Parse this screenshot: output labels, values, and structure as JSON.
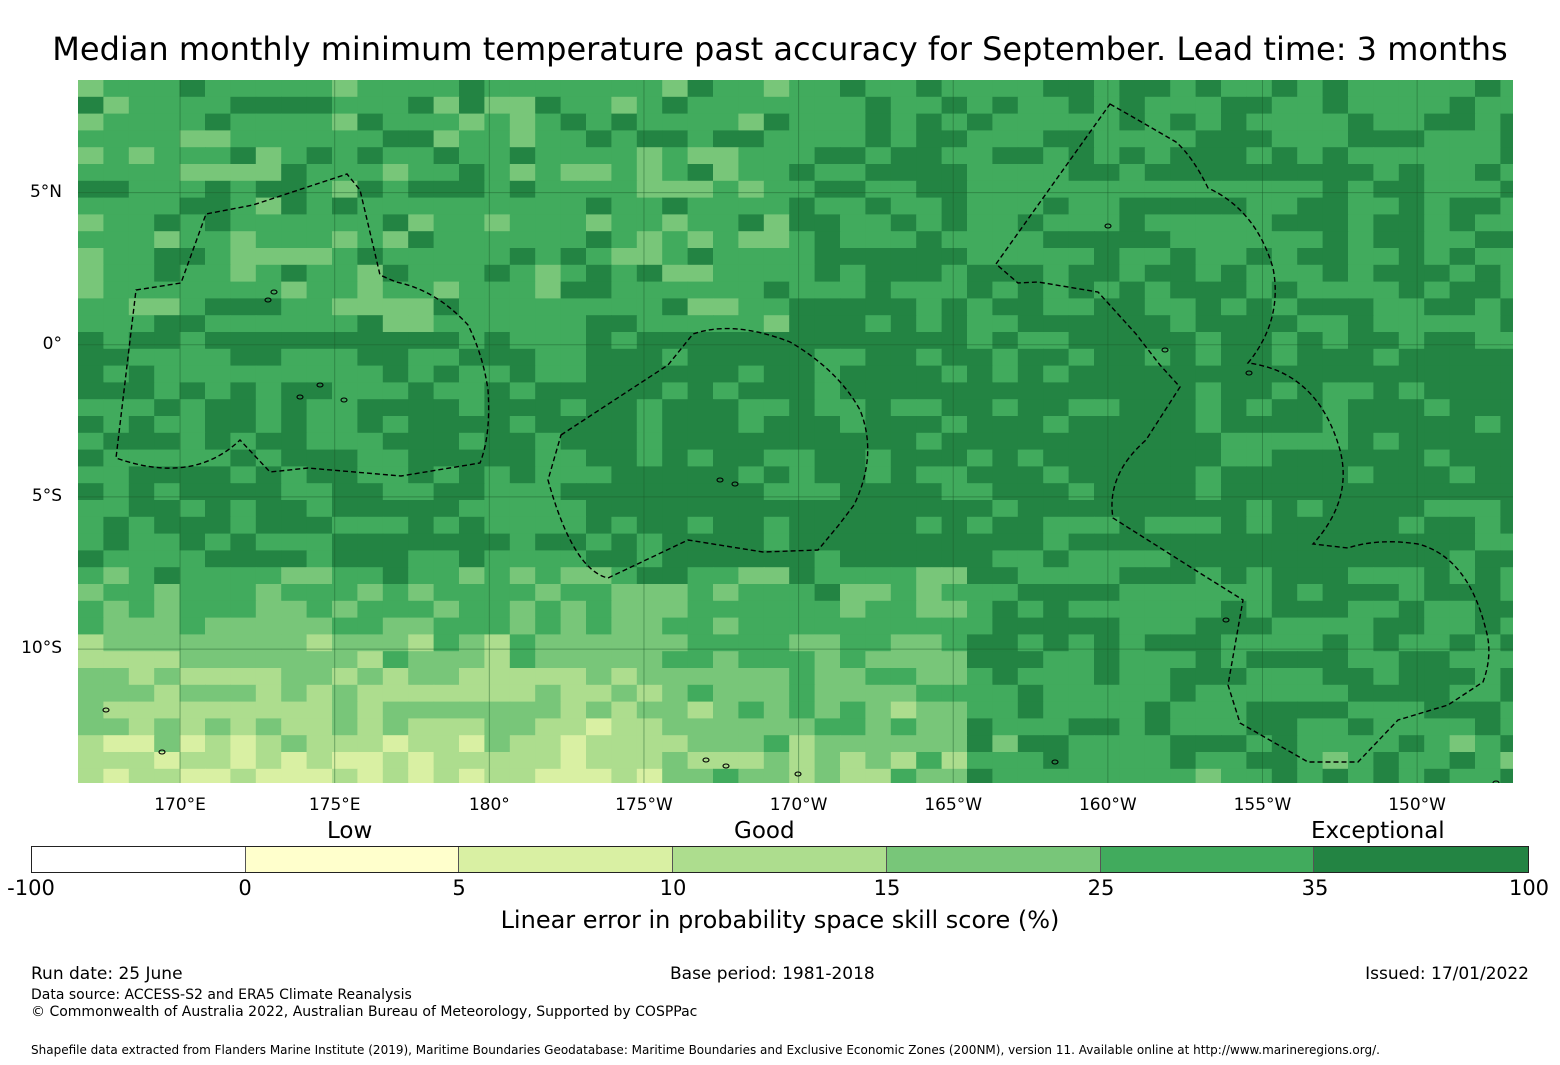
{
  "title": "Median monthly minimum temperature past accuracy for September. Lead time: 3 months",
  "map": {
    "lon_range": [
      -193.3,
      -146.9
    ],
    "lat_range": [
      -14.4,
      8.7
    ],
    "lat_labels": [
      "5°N",
      "0°",
      "5°S",
      "10°S"
    ],
    "lat_values": [
      5,
      0,
      -5,
      -10
    ],
    "lon_labels": [
      "170°E",
      "175°E",
      "180°",
      "175°W",
      "170°W",
      "165°W",
      "160°W",
      "155°W",
      "150°W"
    ],
    "lon_values": [
      170,
      175,
      180,
      -175,
      -170,
      -165,
      -160,
      -155,
      -150
    ]
  },
  "legend": {
    "categories": [
      "Low",
      "Good",
      "Exceptional"
    ],
    "ticks": [
      "-100",
      "0",
      "5",
      "10",
      "15",
      "25",
      "35",
      "100"
    ],
    "colors": [
      "#ffffff",
      "#ffffcc",
      "#d9f0a3",
      "#addd8e",
      "#78c679",
      "#41ab5d",
      "#238443"
    ],
    "title": "Linear error in probability space skill score (%)"
  },
  "footer": {
    "run_date": "Run date: 25 June",
    "base_period": "Base period: 1981-2018",
    "issued": "Issued: 17/01/2022",
    "data_source": "Data source: ACCESS-S2 and ERA5 Climate Reanalysis",
    "copyright": "© Commonwealth of Australia 2022, Australian Bureau of Meteorology, Supported by COSPPac",
    "shapefile": "Shapefile data extracted from Flanders Marine Institute (2019), Maritime Boundaries Geodatabase: Maritime Boundaries and Exclusive Economic Zones (200NM), version 11. Available online at http://www.marineregions.org/."
  }
}
